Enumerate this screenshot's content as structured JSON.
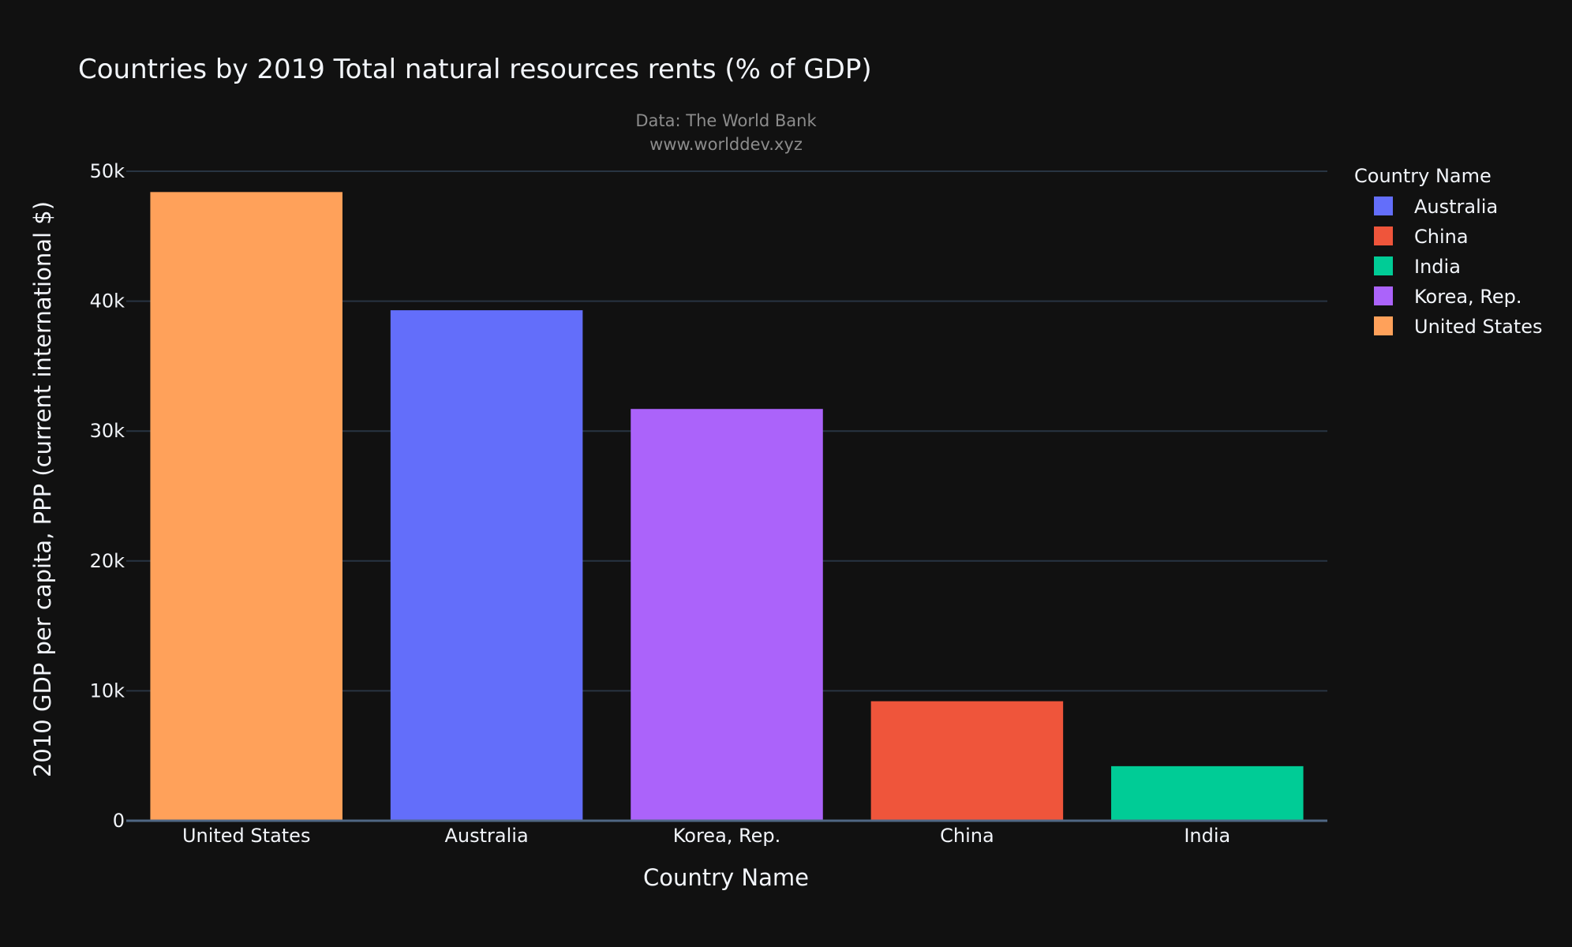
{
  "chart_data": {
    "type": "bar",
    "title": "Countries by 2019 Total natural resources rents (% of GDP)",
    "subtitle_lines": [
      "Data: The World Bank",
      "www.worlddev.xyz"
    ],
    "xlabel": "Country Name",
    "ylabel": "2010 GDP per capita, PPP (current international $)",
    "categories": [
      "United States",
      "Australia",
      "Korea, Rep.",
      "China",
      "India"
    ],
    "values": [
      48400,
      39300,
      31700,
      9200,
      4200
    ],
    "bar_colors": [
      "#FFA15A",
      "#636EFA",
      "#AB63FA",
      "#EF553B",
      "#00CC96"
    ],
    "ylim": [
      0,
      50000
    ],
    "yticks": [
      0,
      10000,
      20000,
      30000,
      40000,
      50000
    ],
    "ytick_labels": [
      "0",
      "10k",
      "20k",
      "30k",
      "40k",
      "50k"
    ],
    "grid": true,
    "legend": {
      "title": "Country Name",
      "placement": "top-right",
      "entries": [
        {
          "label": "Australia",
          "color": "#636EFA"
        },
        {
          "label": "China",
          "color": "#EF553B"
        },
        {
          "label": "India",
          "color": "#00CC96"
        },
        {
          "label": "Korea, Rep.",
          "color": "#AB63FA"
        },
        {
          "label": "United States",
          "color": "#FFA15A"
        }
      ]
    }
  }
}
